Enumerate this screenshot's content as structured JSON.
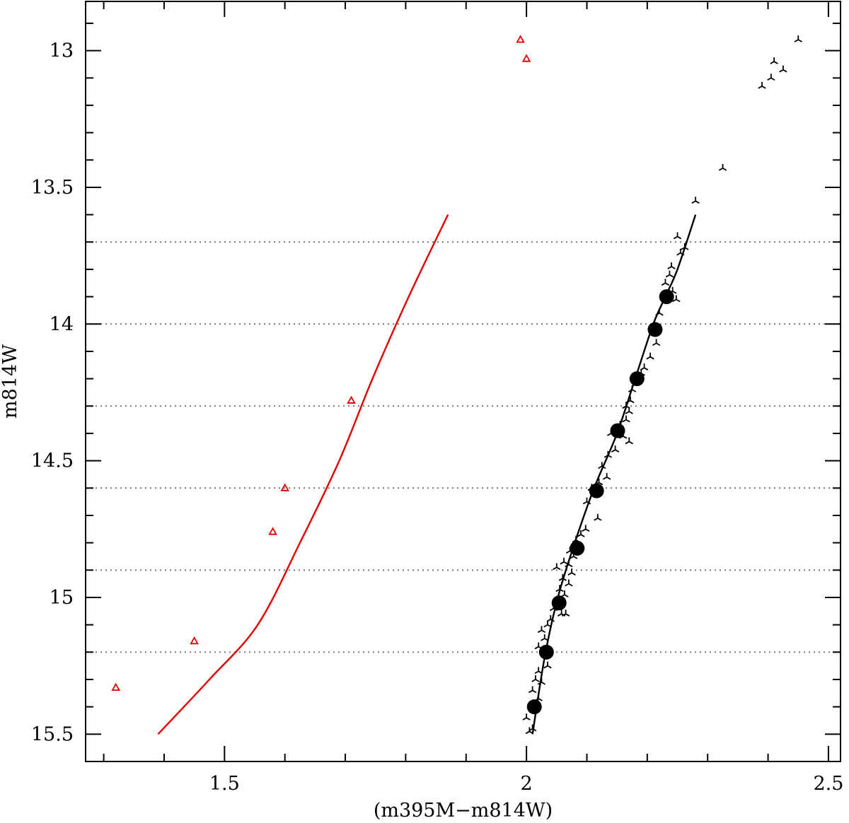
{
  "chart_data": {
    "type": "scatter",
    "xlabel": "(m395M−m814W)",
    "ylabel": "m814W",
    "xlim": [
      1.27,
      2.52
    ],
    "ylim": [
      15.6,
      12.82
    ],
    "y_inverted": true,
    "x_ticks": [
      1.5,
      2,
      2.5
    ],
    "y_ticks": [
      13,
      13.5,
      14,
      14.5,
      15,
      15.5
    ],
    "x_minor_step": 0.1,
    "y_minor_step": 0.1,
    "grid": "horizontal-dotted",
    "reference_lines_y": [
      13.7,
      14.0,
      14.3,
      14.6,
      14.9,
      15.2
    ],
    "colors": {
      "primary": "#e00000",
      "secondary": "#000000",
      "gridline": "#777777"
    },
    "series": [
      {
        "kind": "curve",
        "color": "#e00000",
        "points": [
          [
            1.87,
            13.6
          ],
          [
            1.805,
            13.9
          ],
          [
            1.745,
            14.2
          ],
          [
            1.69,
            14.5
          ],
          [
            1.625,
            14.8
          ],
          [
            1.555,
            15.1
          ],
          [
            1.475,
            15.3
          ],
          [
            1.39,
            15.5
          ]
        ]
      },
      {
        "kind": "triangles",
        "color": "#e00000",
        "points": [
          [
            1.99,
            12.96
          ],
          [
            2.0,
            13.03
          ],
          [
            1.71,
            14.28
          ],
          [
            1.6,
            14.6
          ],
          [
            1.58,
            14.76
          ],
          [
            1.45,
            15.16
          ],
          [
            1.32,
            15.33
          ]
        ]
      },
      {
        "kind": "curve",
        "color": "#000000",
        "points": [
          [
            2.01,
            15.5
          ],
          [
            2.03,
            15.22
          ],
          [
            2.052,
            15.0
          ],
          [
            2.08,
            14.8
          ],
          [
            2.112,
            14.6
          ],
          [
            2.15,
            14.4
          ],
          [
            2.18,
            14.2
          ],
          [
            2.21,
            14.0
          ],
          [
            2.23,
            13.9
          ],
          [
            2.25,
            13.8
          ],
          [
            2.28,
            13.6
          ]
        ]
      },
      {
        "kind": "large-dots",
        "color": "#000000",
        "points": [
          [
            2.232,
            13.9
          ],
          [
            2.213,
            14.02
          ],
          [
            2.183,
            14.2
          ],
          [
            2.151,
            14.39
          ],
          [
            2.116,
            14.61
          ],
          [
            2.084,
            14.82
          ],
          [
            2.054,
            15.02
          ],
          [
            2.033,
            15.2
          ],
          [
            2.013,
            15.4
          ]
        ]
      },
      {
        "kind": "tripods",
        "color": "#000000",
        "points": [
          [
            2.45,
            12.96
          ],
          [
            2.41,
            13.04
          ],
          [
            2.425,
            13.07
          ],
          [
            2.405,
            13.1
          ],
          [
            2.39,
            13.13
          ],
          [
            2.325,
            13.43
          ],
          [
            2.28,
            13.55
          ],
          [
            2.25,
            13.68
          ],
          [
            2.262,
            13.72
          ],
          [
            2.255,
            13.74
          ],
          [
            2.24,
            13.79
          ],
          [
            2.237,
            13.82
          ],
          [
            2.23,
            13.85
          ],
          [
            2.242,
            13.88
          ],
          [
            2.248,
            13.91
          ],
          [
            2.22,
            13.96
          ],
          [
            2.215,
            14.07
          ],
          [
            2.205,
            14.12
          ],
          [
            2.195,
            14.16
          ],
          [
            2.19,
            14.18
          ],
          [
            2.175,
            14.24
          ],
          [
            2.172,
            14.28
          ],
          [
            2.165,
            14.3
          ],
          [
            2.17,
            14.32
          ],
          [
            2.165,
            14.35
          ],
          [
            2.155,
            14.37
          ],
          [
            2.14,
            14.4
          ],
          [
            2.16,
            14.41
          ],
          [
            2.17,
            14.43
          ],
          [
            2.147,
            14.46
          ],
          [
            2.135,
            14.48
          ],
          [
            2.125,
            14.52
          ],
          [
            2.133,
            14.56
          ],
          [
            2.12,
            14.58
          ],
          [
            2.108,
            14.6
          ],
          [
            2.1,
            14.65
          ],
          [
            2.118,
            14.71
          ],
          [
            2.098,
            14.75
          ],
          [
            2.09,
            14.77
          ],
          [
            2.082,
            14.79
          ],
          [
            2.072,
            14.83
          ],
          [
            2.078,
            14.85
          ],
          [
            2.062,
            14.87
          ],
          [
            2.07,
            14.88
          ],
          [
            2.05,
            14.89
          ],
          [
            2.075,
            14.91
          ],
          [
            2.06,
            14.93
          ],
          [
            2.07,
            14.95
          ],
          [
            2.055,
            14.97
          ],
          [
            2.063,
            14.99
          ],
          [
            2.045,
            15.04
          ],
          [
            2.058,
            15.06
          ],
          [
            2.065,
            15.06
          ],
          [
            2.04,
            15.08
          ],
          [
            2.035,
            15.1
          ],
          [
            2.025,
            15.12
          ],
          [
            2.03,
            15.15
          ],
          [
            2.02,
            15.18
          ],
          [
            2.03,
            15.2
          ],
          [
            2.035,
            15.25
          ],
          [
            2.02,
            15.27
          ],
          [
            2.015,
            15.3
          ],
          [
            2.025,
            15.31
          ],
          [
            2.01,
            15.34
          ],
          [
            2.02,
            15.37
          ],
          [
            2.0,
            15.44
          ],
          [
            2.01,
            15.48
          ],
          [
            2.005,
            15.49
          ]
        ]
      }
    ]
  }
}
